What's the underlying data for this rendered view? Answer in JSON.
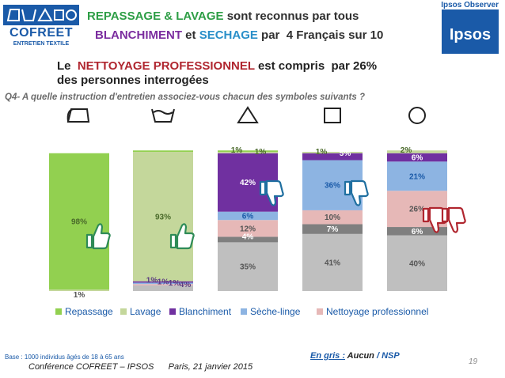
{
  "header": {
    "logo_name": "COFREET",
    "logo_sub": "ENTRETIEN TEXTILE",
    "title_line1": {
      "w1": "REPASSAGE",
      "w2": " & ",
      "w3": "LAVAGE",
      "w4": " sont reconnus par tous"
    },
    "title_line2": {
      "w1": "BLANCHIMENT",
      "w2": " et ",
      "w3": "SECHAGE",
      "w4": " par  4 Français sur 10"
    },
    "subtitle_line1": {
      "w1": "Le  ",
      "w2": "NETTOYAGE PROFESSIONNEL",
      "w3": " est compris  par 26%"
    },
    "subtitle_line2": "des personnes interrogées",
    "ipsos_observer": "Ipsos Observer",
    "ipsos_logo": "Ipsos",
    "question": "Q4- A quelle instruction d'entretien associez-vous chacun des symboles suivants ?"
  },
  "footer": {
    "base": "Base : 1000 individus âgés de 18 à 65 ans",
    "conference": "Conférence COFREET – IPSOS      Paris, 21 janvier 2015",
    "gris_prefix": "En gris :",
    "gris_value": "Aucun",
    "gris_sep": " / ",
    "gris_nsp": "NSP",
    "page_number": "19"
  },
  "chart_data": {
    "type": "bar",
    "stacked": true,
    "categories": [
      "iron-symbol",
      "washtub-symbol",
      "triangle-symbol",
      "square-symbol",
      "circle-symbol"
    ],
    "ylim": [
      0,
      100
    ],
    "legend_position": "bottom",
    "series": [
      {
        "name": "Aucun / NSP",
        "color": "#bfbfbf",
        "values": [
          0,
          4,
          35,
          41,
          40
        ]
      },
      {
        "name": "",
        "color": "#7f7f7f",
        "values": [
          0,
          0,
          4,
          7,
          6
        ]
      },
      {
        "name": "Nettoyage professionnel",
        "color": "#e6b8b7",
        "values": [
          0,
          1,
          12,
          10,
          26
        ]
      },
      {
        "name": "Sèche-linge",
        "color": "#8db4e2",
        "values": [
          0,
          1,
          6,
          36,
          21
        ]
      },
      {
        "name": "Blanchiment",
        "color": "#7030a0",
        "values": [
          0,
          1,
          42,
          5,
          6
        ]
      },
      {
        "name": "Lavage",
        "color": "#c4d79b",
        "values": [
          1,
          93,
          1,
          1,
          2
        ]
      },
      {
        "name": "Repassage",
        "color": "#92d050",
        "values": [
          98,
          1,
          1,
          0,
          0
        ]
      }
    ],
    "labels": [
      [
        {
          "series": 6,
          "text": "98%"
        },
        {
          "series": 5,
          "text": "1%"
        }
      ],
      [
        {
          "series": 5,
          "text": "93%"
        },
        {
          "series": 6,
          "text": "1%"
        },
        {
          "series": 4,
          "text": "1%"
        },
        {
          "series": 3,
          "text": "1%"
        },
        {
          "series": 2,
          "text": "1%"
        },
        {
          "series": 0,
          "text": "4%"
        }
      ],
      [
        {
          "series": 6,
          "text": "1%"
        },
        {
          "series": 5,
          "text": "1%"
        },
        {
          "series": 4,
          "text": "42%"
        },
        {
          "series": 3,
          "text": "6%"
        },
        {
          "series": 2,
          "text": "12%"
        },
        {
          "series": 1,
          "text": "4%"
        },
        {
          "series": 0,
          "text": "35%"
        }
      ],
      [
        {
          "series": 5,
          "text": "1%"
        },
        {
          "series": 4,
          "text": "5%"
        },
        {
          "series": 3,
          "text": "36%"
        },
        {
          "series": 2,
          "text": "10%"
        },
        {
          "series": 1,
          "text": "7%"
        },
        {
          "series": 0,
          "text": "41%"
        }
      ],
      [
        {
          "series": 5,
          "text": "2%"
        },
        {
          "series": 4,
          "text": "6%"
        },
        {
          "series": 3,
          "text": "21%"
        },
        {
          "series": 2,
          "text": "26%"
        },
        {
          "series": 1,
          "text": "6%"
        },
        {
          "series": 0,
          "text": "40%"
        }
      ]
    ],
    "legend": [
      {
        "name": "Repassage",
        "color": "#92d050"
      },
      {
        "name": "Lavage",
        "color": "#c4d79b"
      },
      {
        "name": "Blanchiment",
        "color": "#7030a0"
      },
      {
        "name": "Sèche-linge",
        "color": "#8db4e2"
      },
      {
        "name": "Nettoyage professionnel",
        "color": "#e6b8b7"
      }
    ],
    "thumbs": [
      {
        "category": 0,
        "type": "thumbs-up",
        "color": "#2e8b57"
      },
      {
        "category": 1,
        "type": "thumbs-up",
        "color": "#2e8b57"
      },
      {
        "category": 2,
        "type": "thumbs-down",
        "color": "#1f6fa0"
      },
      {
        "category": 3,
        "type": "thumbs-down",
        "color": "#1f6fa0"
      },
      {
        "category": 4,
        "type": "thumbs-down-double",
        "color": "#b0262f"
      }
    ]
  }
}
